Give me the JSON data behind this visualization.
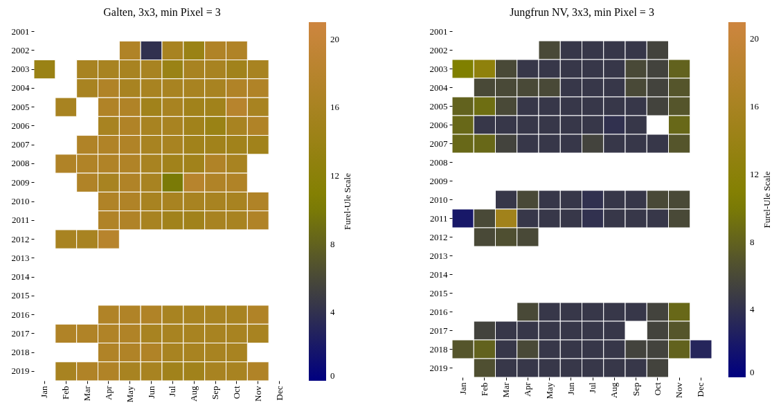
{
  "chart_data": [
    {
      "type": "heatmap",
      "title": "Galten, 3x3, min Pixel = 3",
      "clabel": "Furel-Ule Scale",
      "categories": [
        "Jan",
        "Feb",
        "Mar",
        "Apr",
        "May",
        "Jun",
        "Jul",
        "Aug",
        "Sep",
        "Oct",
        "Nov",
        "Dec"
      ],
      "y_categories": [
        "2001",
        "2002",
        "2003",
        "2004",
        "2005",
        "2006",
        "2007",
        "2008",
        "2009",
        "2010",
        "2011",
        "2012",
        "2013",
        "2014",
        "2015",
        "2016",
        "2017",
        "2018",
        "2019"
      ],
      "cells": [
        [
          null,
          null,
          null,
          null,
          null,
          null,
          null,
          null,
          null,
          null,
          null,
          null
        ],
        [
          null,
          null,
          null,
          null,
          17,
          4,
          16,
          14,
          17,
          17,
          null,
          null
        ],
        [
          14,
          null,
          16,
          16,
          16,
          16,
          14,
          16,
          16,
          15,
          16,
          null
        ],
        [
          null,
          null,
          16,
          17,
          16,
          16,
          16,
          16,
          16,
          17,
          17,
          null
        ],
        [
          null,
          16,
          null,
          17,
          17,
          15,
          16,
          15,
          15,
          18,
          16,
          null
        ],
        [
          null,
          null,
          null,
          16,
          17,
          16,
          16,
          15,
          14,
          16,
          17,
          null
        ],
        [
          null,
          null,
          17,
          17,
          17,
          16,
          16,
          15,
          15,
          15,
          15,
          null
        ],
        [
          null,
          17,
          17,
          17,
          17,
          16,
          15,
          15,
          17,
          16,
          null,
          null
        ],
        [
          null,
          null,
          17,
          16,
          17,
          16,
          10,
          18,
          17,
          17,
          null,
          null
        ],
        [
          null,
          null,
          null,
          17,
          17,
          16,
          16,
          16,
          16,
          16,
          17,
          null
        ],
        [
          null,
          null,
          null,
          17,
          17,
          16,
          15,
          15,
          16,
          16,
          17,
          null
        ],
        [
          null,
          16,
          16,
          18,
          null,
          null,
          null,
          null,
          null,
          null,
          null,
          null
        ],
        [
          null,
          null,
          null,
          null,
          null,
          null,
          null,
          null,
          null,
          null,
          null,
          null
        ],
        [
          null,
          null,
          null,
          null,
          null,
          null,
          null,
          null,
          null,
          null,
          null,
          null
        ],
        [
          null,
          null,
          null,
          null,
          null,
          null,
          null,
          null,
          null,
          null,
          null,
          null
        ],
        [
          null,
          null,
          null,
          17,
          17,
          17,
          16,
          16,
          16,
          16,
          17,
          null
        ],
        [
          null,
          17,
          17,
          17,
          17,
          16,
          16,
          16,
          16,
          16,
          16,
          null
        ],
        [
          null,
          null,
          null,
          17,
          17,
          17,
          16,
          16,
          16,
          16,
          null,
          null
        ],
        [
          null,
          16,
          17,
          17,
          16,
          16,
          15,
          15,
          16,
          16,
          17,
          null
        ]
      ],
      "clim": [
        0,
        21
      ],
      "cticks": [
        0,
        4,
        8,
        12,
        16,
        20
      ]
    },
    {
      "type": "heatmap",
      "title": "Jungfrun NV, 3x3, min Pixel = 3",
      "clabel": "Furel-Ule Scale",
      "categories": [
        "Jan",
        "Feb",
        "Mar",
        "Apr",
        "May",
        "Jun",
        "Jul",
        "Aug",
        "Sep",
        "Oct",
        "Nov",
        "Dec"
      ],
      "y_categories": [
        "2001",
        "2002",
        "2003",
        "2004",
        "2005",
        "2006",
        "2007",
        "2008",
        "2009",
        "2010",
        "2011",
        "2012",
        "2013",
        "2014",
        "2015",
        "2016",
        "2017",
        "2018",
        "2019"
      ],
      "cells": [
        [
          null,
          null,
          null,
          null,
          null,
          null,
          null,
          null,
          null,
          null,
          null,
          null
        ],
        [
          null,
          null,
          null,
          null,
          6,
          4.5,
          4.5,
          4.5,
          4.5,
          5.5,
          null,
          null
        ],
        [
          10.5,
          12.5,
          6,
          4.5,
          4.5,
          4.5,
          4.5,
          4.5,
          6,
          5.5,
          8,
          null
        ],
        [
          null,
          6,
          6,
          6,
          6,
          4.5,
          4.5,
          4.5,
          6,
          5.5,
          7,
          null
        ],
        [
          8,
          9,
          6,
          4.5,
          4.5,
          4.5,
          4.5,
          4.5,
          4.5,
          5.5,
          7,
          null
        ],
        [
          8.5,
          4.5,
          4.5,
          4.5,
          4.5,
          4.5,
          4.5,
          4,
          4.5,
          null,
          8.5,
          null
        ],
        [
          8.5,
          8.5,
          5.5,
          4.5,
          4.5,
          4.5,
          5.5,
          4.5,
          4.5,
          4.5,
          7,
          null
        ],
        [
          null,
          null,
          null,
          null,
          null,
          null,
          null,
          null,
          null,
          null,
          null,
          null
        ],
        [
          null,
          null,
          null,
          null,
          null,
          null,
          null,
          null,
          null,
          null,
          null,
          null
        ],
        [
          null,
          null,
          4.5,
          6,
          4.5,
          4.5,
          4,
          4.5,
          4.5,
          6,
          6,
          null
        ],
        [
          2,
          6,
          15,
          4.5,
          4.5,
          4.5,
          4,
          4.5,
          4.5,
          4.5,
          6,
          null
        ],
        [
          null,
          6,
          6.5,
          6,
          null,
          null,
          null,
          null,
          null,
          null,
          null,
          null
        ],
        [
          null,
          null,
          null,
          null,
          null,
          null,
          null,
          null,
          null,
          null,
          null,
          null
        ],
        [
          null,
          null,
          null,
          null,
          null,
          null,
          null,
          null,
          null,
          null,
          null,
          null
        ],
        [
          null,
          null,
          null,
          null,
          null,
          null,
          null,
          null,
          null,
          null,
          null,
          null
        ],
        [
          null,
          null,
          null,
          6,
          4.5,
          4.5,
          4.5,
          4.5,
          4.5,
          5.5,
          8.5,
          null
        ],
        [
          null,
          5.5,
          4.5,
          4.5,
          4.5,
          4.5,
          4.5,
          4.5,
          null,
          5.5,
          7,
          null
        ],
        [
          7,
          8,
          4.5,
          6,
          4.5,
          4.5,
          4.5,
          4.5,
          5.5,
          5.5,
          8,
          3
        ],
        [
          null,
          6.5,
          4.5,
          4.5,
          4.5,
          4.5,
          4.5,
          4.5,
          4.5,
          5.5,
          null,
          null
        ]
      ],
      "clim": [
        0,
        21
      ],
      "cticks": [
        0,
        4,
        8,
        12,
        16,
        20
      ]
    }
  ]
}
